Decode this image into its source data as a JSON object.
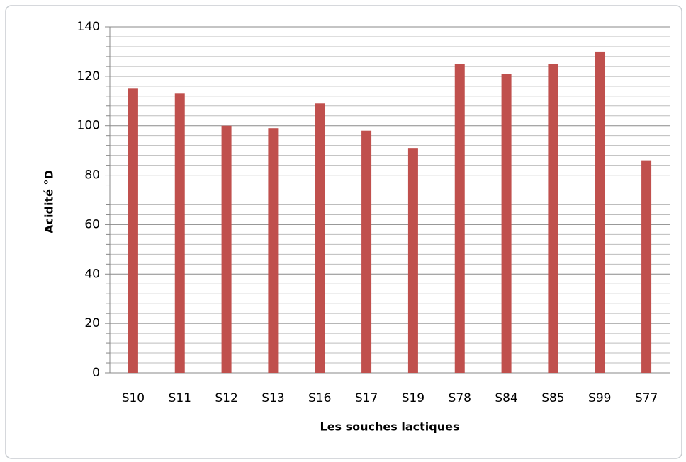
{
  "chart_data": {
    "type": "bar",
    "categories": [
      "S10",
      "S11",
      "S12",
      "S13",
      "S16",
      "S17",
      "S19",
      "S78",
      "S84",
      "S85",
      "S99",
      "S77"
    ],
    "values": [
      115,
      113,
      100,
      99,
      109,
      98,
      91,
      125,
      121,
      125,
      130,
      86
    ],
    "color": "#c0504d",
    "xlabel": "Les souches lactiques",
    "ylabel": "Acidité °D",
    "ylim": [
      0,
      140
    ],
    "yticks": [
      0,
      20,
      40,
      60,
      80,
      100,
      120,
      140
    ],
    "minor_yticks": [
      4,
      8,
      12,
      16,
      24,
      28,
      32,
      36,
      44,
      48,
      52,
      56,
      64,
      68,
      72,
      76,
      84,
      88,
      92,
      96,
      104,
      108,
      112,
      116,
      124,
      128,
      132,
      136
    ],
    "grid": true
  }
}
